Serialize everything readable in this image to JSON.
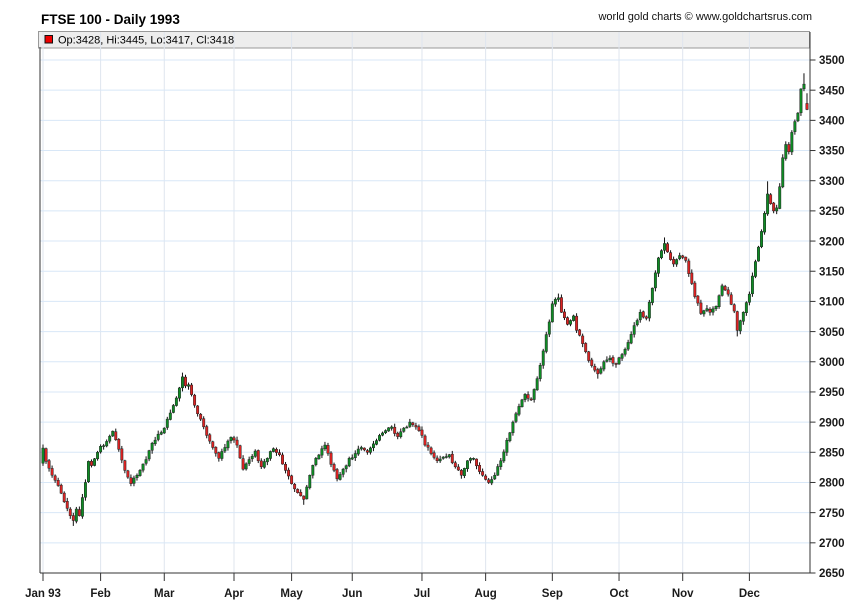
{
  "page": {
    "title": "FTSE 100 - Daily 1993",
    "credit": "world gold charts © www.goldchartsrus.com"
  },
  "legend": {
    "text": "Op:3428, Hi:3445, Lo:3417, Cl:3418",
    "marker_color": "#ee0000"
  },
  "chart_data": {
    "type": "candlestick",
    "title": "FTSE 100 - Daily 1993",
    "instrument": "FTSE 100",
    "period": "Daily 1993",
    "y_axis": {
      "min": 2650,
      "max": 3500,
      "step": 50,
      "side": "right"
    },
    "x_axis": {
      "total_days": 253,
      "months": [
        {
          "label": "Jan 93",
          "day": 0
        },
        {
          "label": "Feb",
          "day": 19
        },
        {
          "label": "Mar",
          "day": 40
        },
        {
          "label": "Apr",
          "day": 63
        },
        {
          "label": "May",
          "day": 82
        },
        {
          "label": "Jun",
          "day": 102
        },
        {
          "label": "Jul",
          "day": 125
        },
        {
          "label": "Aug",
          "day": 146
        },
        {
          "label": "Sep",
          "day": 168
        },
        {
          "label": "Oct",
          "day": 190
        },
        {
          "label": "Nov",
          "day": 211
        },
        {
          "label": "Dec",
          "day": 233
        }
      ]
    },
    "first_open": 2832,
    "last_candle": {
      "open": 3428,
      "high": 3445,
      "low": 3417,
      "close": 3418
    },
    "year_low": 2728,
    "year_high": 3478,
    "anchors": [
      [
        0,
        2857
      ],
      [
        1,
        2835
      ],
      [
        3,
        2812
      ],
      [
        5,
        2795
      ],
      [
        7,
        2768
      ],
      [
        9,
        2745
      ],
      [
        10,
        2737,
        null,
        2728
      ],
      [
        11,
        2756
      ],
      [
        12,
        2745
      ],
      [
        14,
        2800
      ],
      [
        15,
        2835
      ],
      [
        16,
        2828
      ],
      [
        18,
        2850
      ],
      [
        19,
        2860
      ],
      [
        21,
        2868
      ],
      [
        23,
        2885
      ],
      [
        25,
        2855
      ],
      [
        27,
        2820
      ],
      [
        29,
        2798
      ],
      [
        31,
        2812
      ],
      [
        34,
        2838
      ],
      [
        36,
        2865
      ],
      [
        38,
        2880
      ],
      [
        40,
        2890
      ],
      [
        41,
        2905
      ],
      [
        44,
        2940
      ],
      [
        46,
        2975,
        2982,
        null
      ],
      [
        47,
        2960
      ],
      [
        48,
        2962
      ],
      [
        50,
        2928
      ],
      [
        52,
        2905
      ],
      [
        54,
        2878
      ],
      [
        56,
        2858
      ],
      [
        58,
        2840
      ],
      [
        60,
        2858
      ],
      [
        62,
        2875
      ],
      [
        64,
        2862
      ],
      [
        66,
        2822
      ],
      [
        68,
        2838
      ],
      [
        70,
        2852
      ],
      [
        72,
        2826
      ],
      [
        74,
        2840
      ],
      [
        76,
        2856
      ],
      [
        78,
        2846
      ],
      [
        80,
        2820
      ],
      [
        82,
        2798
      ],
      [
        84,
        2783
      ],
      [
        86,
        2772,
        null,
        2763
      ],
      [
        88,
        2812
      ],
      [
        90,
        2840
      ],
      [
        92,
        2856
      ],
      [
        93,
        2862
      ],
      [
        95,
        2830
      ],
      [
        97,
        2806
      ],
      [
        99,
        2822
      ],
      [
        101,
        2840
      ],
      [
        103,
        2848
      ],
      [
        105,
        2858
      ],
      [
        107,
        2850
      ],
      [
        109,
        2864
      ],
      [
        111,
        2878
      ],
      [
        113,
        2886
      ],
      [
        115,
        2892
      ],
      [
        117,
        2876
      ],
      [
        119,
        2890
      ],
      [
        121,
        2900
      ],
      [
        123,
        2892
      ],
      [
        125,
        2878
      ],
      [
        126,
        2862
      ],
      [
        128,
        2848
      ],
      [
        130,
        2836
      ],
      [
        132,
        2842
      ],
      [
        134,
        2846
      ],
      [
        136,
        2826
      ],
      [
        138,
        2812
      ],
      [
        140,
        2836
      ],
      [
        142,
        2840
      ],
      [
        144,
        2818
      ],
      [
        146,
        2805
      ],
      [
        147,
        2800
      ],
      [
        149,
        2812
      ],
      [
        151,
        2836
      ],
      [
        153,
        2870
      ],
      [
        155,
        2900
      ],
      [
        157,
        2926
      ],
      [
        159,
        2946
      ],
      [
        161,
        2938
      ],
      [
        163,
        2972
      ],
      [
        165,
        3018
      ],
      [
        167,
        3066
      ],
      [
        168,
        3096
      ],
      [
        170,
        3106,
        3113,
        null
      ],
      [
        171,
        3082
      ],
      [
        173,
        3062
      ],
      [
        175,
        3076
      ],
      [
        176,
        3052
      ],
      [
        178,
        3030
      ],
      [
        180,
        3002
      ],
      [
        182,
        2986
      ],
      [
        183,
        2980,
        null,
        2972
      ],
      [
        185,
        3000
      ],
      [
        187,
        3006
      ],
      [
        189,
        2996
      ],
      [
        191,
        3012
      ],
      [
        193,
        3032
      ],
      [
        195,
        3060
      ],
      [
        197,
        3082
      ],
      [
        199,
        3072
      ],
      [
        201,
        3122
      ],
      [
        203,
        3172
      ],
      [
        205,
        3196,
        3206,
        null
      ],
      [
        206,
        3182
      ],
      [
        208,
        3162
      ],
      [
        210,
        3176
      ],
      [
        212,
        3168
      ],
      [
        213,
        3146
      ],
      [
        215,
        3108
      ],
      [
        217,
        3080
      ],
      [
        219,
        3088
      ],
      [
        220,
        3082
      ],
      [
        222,
        3092
      ],
      [
        224,
        3126
      ],
      [
        226,
        3112
      ],
      [
        228,
        3084
      ],
      [
        229,
        3052,
        null,
        3042
      ],
      [
        231,
        3082
      ],
      [
        233,
        3112
      ],
      [
        234,
        3142
      ],
      [
        235,
        3166
      ],
      [
        236,
        3190
      ],
      [
        237,
        3216
      ],
      [
        238,
        3246
      ],
      [
        239,
        3278,
        3299,
        null
      ],
      [
        240,
        3262
      ],
      [
        241,
        3250
      ],
      [
        242,
        3255
      ],
      [
        243,
        3290
      ],
      [
        244,
        3338
      ],
      [
        245,
        3360
      ],
      [
        246,
        3348
      ],
      [
        247,
        3380
      ],
      [
        248,
        3398
      ],
      [
        249,
        3412
      ],
      [
        250,
        3452
      ],
      [
        251,
        3460,
        3478,
        null
      ],
      [
        252,
        3418
      ]
    ],
    "colors": {
      "up": "#0e8c24",
      "down": "#dd2222",
      "body_stroke": "#222222",
      "wick": "#111111",
      "grid_h": "#d8e7f7",
      "grid_v": "#dfe5ee",
      "axis": "#333333",
      "legend_bg": "#ededed",
      "legend_border": "#999999"
    },
    "seed": 11
  }
}
